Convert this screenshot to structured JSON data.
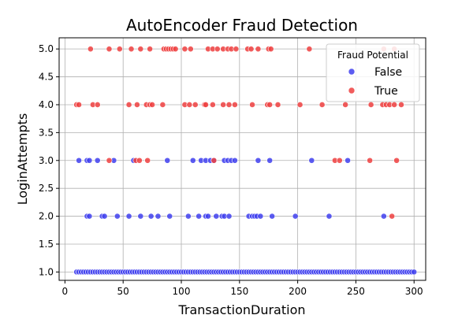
{
  "chart_data": {
    "type": "scatter",
    "title": "AutoEncoder Fraud Detection",
    "xlabel": "TransactionDuration",
    "ylabel": "LoginAttempts",
    "xlim": [
      -5,
      310
    ],
    "ylim": [
      0.85,
      5.2
    ],
    "xticks": [
      0,
      50,
      100,
      150,
      200,
      250,
      300
    ],
    "yticks": [
      1.0,
      1.5,
      2.0,
      2.5,
      3.0,
      3.5,
      4.0,
      4.5,
      5.0
    ],
    "grid": true,
    "legend": {
      "title": "Fraud Potential",
      "placement": "top-right"
    },
    "series": [
      {
        "name": "False",
        "color": "#4040ee",
        "points": [
          [
            10,
            1
          ],
          [
            12,
            1
          ],
          [
            14,
            1
          ],
          [
            16,
            1
          ],
          [
            18,
            1
          ],
          [
            20,
            1
          ],
          [
            22,
            1
          ],
          [
            24,
            1
          ],
          [
            26,
            1
          ],
          [
            28,
            1
          ],
          [
            30,
            1
          ],
          [
            32,
            1
          ],
          [
            34,
            1
          ],
          [
            36,
            1
          ],
          [
            38,
            1
          ],
          [
            40,
            1
          ],
          [
            42,
            1
          ],
          [
            44,
            1
          ],
          [
            46,
            1
          ],
          [
            48,
            1
          ],
          [
            50,
            1
          ],
          [
            52,
            1
          ],
          [
            54,
            1
          ],
          [
            56,
            1
          ],
          [
            58,
            1
          ],
          [
            60,
            1
          ],
          [
            62,
            1
          ],
          [
            64,
            1
          ],
          [
            66,
            1
          ],
          [
            68,
            1
          ],
          [
            70,
            1
          ],
          [
            72,
            1
          ],
          [
            74,
            1
          ],
          [
            76,
            1
          ],
          [
            78,
            1
          ],
          [
            80,
            1
          ],
          [
            82,
            1
          ],
          [
            84,
            1
          ],
          [
            86,
            1
          ],
          [
            88,
            1
          ],
          [
            90,
            1
          ],
          [
            92,
            1
          ],
          [
            94,
            1
          ],
          [
            96,
            1
          ],
          [
            98,
            1
          ],
          [
            100,
            1
          ],
          [
            102,
            1
          ],
          [
            104,
            1
          ],
          [
            106,
            1
          ],
          [
            108,
            1
          ],
          [
            110,
            1
          ],
          [
            112,
            1
          ],
          [
            114,
            1
          ],
          [
            116,
            1
          ],
          [
            118,
            1
          ],
          [
            120,
            1
          ],
          [
            122,
            1
          ],
          [
            124,
            1
          ],
          [
            126,
            1
          ],
          [
            128,
            1
          ],
          [
            130,
            1
          ],
          [
            132,
            1
          ],
          [
            134,
            1
          ],
          [
            136,
            1
          ],
          [
            138,
            1
          ],
          [
            140,
            1
          ],
          [
            142,
            1
          ],
          [
            144,
            1
          ],
          [
            146,
            1
          ],
          [
            148,
            1
          ],
          [
            150,
            1
          ],
          [
            152,
            1
          ],
          [
            154,
            1
          ],
          [
            156,
            1
          ],
          [
            158,
            1
          ],
          [
            160,
            1
          ],
          [
            162,
            1
          ],
          [
            164,
            1
          ],
          [
            166,
            1
          ],
          [
            168,
            1
          ],
          [
            170,
            1
          ],
          [
            172,
            1
          ],
          [
            174,
            1
          ],
          [
            176,
            1
          ],
          [
            178,
            1
          ],
          [
            180,
            1
          ],
          [
            182,
            1
          ],
          [
            184,
            1
          ],
          [
            186,
            1
          ],
          [
            188,
            1
          ],
          [
            190,
            1
          ],
          [
            192,
            1
          ],
          [
            194,
            1
          ],
          [
            196,
            1
          ],
          [
            198,
            1
          ],
          [
            200,
            1
          ],
          [
            202,
            1
          ],
          [
            204,
            1
          ],
          [
            206,
            1
          ],
          [
            208,
            1
          ],
          [
            210,
            1
          ],
          [
            212,
            1
          ],
          [
            214,
            1
          ],
          [
            216,
            1
          ],
          [
            218,
            1
          ],
          [
            220,
            1
          ],
          [
            222,
            1
          ],
          [
            224,
            1
          ],
          [
            226,
            1
          ],
          [
            228,
            1
          ],
          [
            230,
            1
          ],
          [
            232,
            1
          ],
          [
            234,
            1
          ],
          [
            236,
            1
          ],
          [
            238,
            1
          ],
          [
            240,
            1
          ],
          [
            242,
            1
          ],
          [
            244,
            1
          ],
          [
            246,
            1
          ],
          [
            248,
            1
          ],
          [
            250,
            1
          ],
          [
            252,
            1
          ],
          [
            254,
            1
          ],
          [
            256,
            1
          ],
          [
            258,
            1
          ],
          [
            260,
            1
          ],
          [
            262,
            1
          ],
          [
            264,
            1
          ],
          [
            266,
            1
          ],
          [
            268,
            1
          ],
          [
            270,
            1
          ],
          [
            272,
            1
          ],
          [
            274,
            1
          ],
          [
            276,
            1
          ],
          [
            278,
            1
          ],
          [
            280,
            1
          ],
          [
            282,
            1
          ],
          [
            284,
            1
          ],
          [
            286,
            1
          ],
          [
            288,
            1
          ],
          [
            290,
            1
          ],
          [
            292,
            1
          ],
          [
            294,
            1
          ],
          [
            296,
            1
          ],
          [
            298,
            1
          ],
          [
            300,
            1
          ],
          [
            19,
            2
          ],
          [
            21,
            2
          ],
          [
            32,
            2
          ],
          [
            34,
            2
          ],
          [
            45,
            2
          ],
          [
            55,
            2
          ],
          [
            65,
            2
          ],
          [
            74,
            2
          ],
          [
            80,
            2
          ],
          [
            90,
            2
          ],
          [
            106,
            2
          ],
          [
            115,
            2
          ],
          [
            121,
            2
          ],
          [
            123,
            2
          ],
          [
            130,
            2
          ],
          [
            135,
            2
          ],
          [
            137,
            2
          ],
          [
            141,
            2
          ],
          [
            158,
            2
          ],
          [
            161,
            2
          ],
          [
            163,
            2
          ],
          [
            165,
            2
          ],
          [
            168,
            2
          ],
          [
            178,
            2
          ],
          [
            198,
            2
          ],
          [
            227,
            2
          ],
          [
            274,
            2
          ],
          [
            12,
            3
          ],
          [
            19,
            3
          ],
          [
            21,
            3
          ],
          [
            28,
            3
          ],
          [
            42,
            3
          ],
          [
            59,
            3
          ],
          [
            88,
            3
          ],
          [
            110,
            3
          ],
          [
            117,
            3
          ],
          [
            121,
            3
          ],
          [
            125,
            3
          ],
          [
            128,
            3
          ],
          [
            137,
            3
          ],
          [
            140,
            3
          ],
          [
            143,
            3
          ],
          [
            146,
            3
          ],
          [
            166,
            3
          ],
          [
            176,
            3
          ],
          [
            212,
            3
          ],
          [
            243,
            3
          ]
        ]
      },
      {
        "name": "True",
        "color": "#ee4040",
        "points": [
          [
            10,
            4
          ],
          [
            12,
            4
          ],
          [
            24,
            4
          ],
          [
            28,
            4
          ],
          [
            55,
            4
          ],
          [
            62,
            4
          ],
          [
            70,
            4
          ],
          [
            73,
            4
          ],
          [
            75,
            4
          ],
          [
            84,
            4
          ],
          [
            103,
            4
          ],
          [
            107,
            4
          ],
          [
            112,
            4
          ],
          [
            120,
            4
          ],
          [
            121,
            4
          ],
          [
            127,
            4
          ],
          [
            136,
            4
          ],
          [
            141,
            4
          ],
          [
            146,
            4
          ],
          [
            161,
            4
          ],
          [
            174,
            4
          ],
          [
            176,
            4
          ],
          [
            183,
            4
          ],
          [
            202,
            4
          ],
          [
            221,
            4
          ],
          [
            241,
            4
          ],
          [
            263,
            4
          ],
          [
            273,
            4
          ],
          [
            276,
            4
          ],
          [
            279,
            4
          ],
          [
            283,
            4
          ],
          [
            289,
            4
          ],
          [
            22,
            5
          ],
          [
            38,
            5
          ],
          [
            47,
            5
          ],
          [
            57,
            5
          ],
          [
            65,
            5
          ],
          [
            73,
            5
          ],
          [
            85,
            5
          ],
          [
            87,
            5
          ],
          [
            89,
            5
          ],
          [
            91,
            5
          ],
          [
            93,
            5
          ],
          [
            95,
            5
          ],
          [
            103,
            5
          ],
          [
            108,
            5
          ],
          [
            123,
            5
          ],
          [
            127,
            5
          ],
          [
            131,
            5
          ],
          [
            136,
            5
          ],
          [
            140,
            5
          ],
          [
            143,
            5
          ],
          [
            147,
            5
          ],
          [
            157,
            5
          ],
          [
            160,
            5
          ],
          [
            166,
            5
          ],
          [
            175,
            5
          ],
          [
            177,
            5
          ],
          [
            210,
            5
          ],
          [
            274,
            5
          ],
          [
            283,
            5
          ],
          [
            38,
            3
          ],
          [
            61,
            3
          ],
          [
            64,
            3
          ],
          [
            71,
            3
          ],
          [
            128,
            3
          ],
          [
            232,
            3
          ],
          [
            236,
            3
          ],
          [
            262,
            3
          ],
          [
            285,
            3
          ],
          [
            281,
            2
          ]
        ]
      }
    ]
  }
}
